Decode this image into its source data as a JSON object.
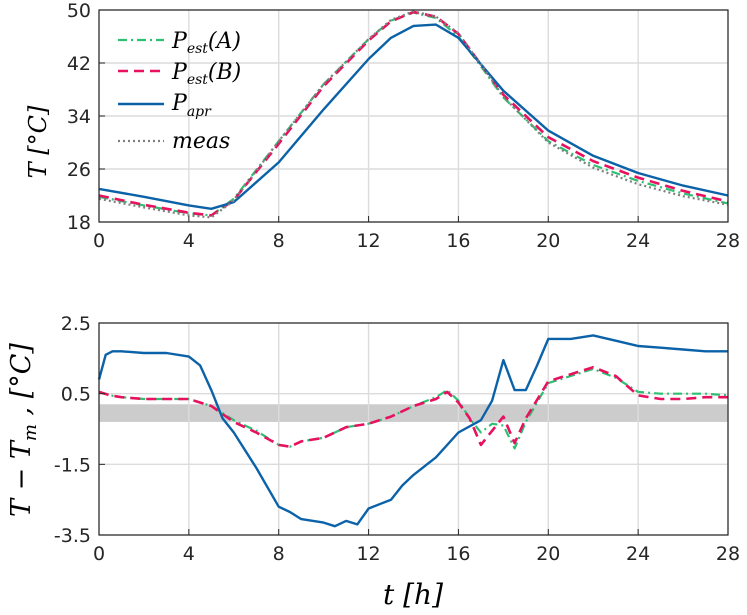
{
  "colors": {
    "pest_a": "#2fbf71",
    "pest_b": "#e8115f",
    "papr": "#0b62a8",
    "meas": "#7f7f7f",
    "band": "#cccccc",
    "grid": "#dcdcdc",
    "axis": "#262626"
  },
  "chart_data": [
    {
      "type": "line",
      "ylabel": "T [°C]",
      "xlim": [
        0,
        28
      ],
      "ylim": [
        18,
        50
      ],
      "xticks": [
        "0",
        "4",
        "8",
        "12",
        "16",
        "20",
        "24",
        "28"
      ],
      "yticks": [
        "18",
        "26",
        "34",
        "42",
        "50"
      ],
      "grid": true,
      "legend_position": "top-left",
      "series": [
        {
          "name": "P_est(A)",
          "style": "dash-dot",
          "x": [
            0,
            2,
            4,
            5,
            6,
            8,
            10,
            12,
            13,
            14,
            15,
            16,
            17,
            18,
            20,
            22,
            24,
            26,
            28
          ],
          "y": [
            21.8,
            20.5,
            19.3,
            19.0,
            21.5,
            30.2,
            38.8,
            45.6,
            48.4,
            49.6,
            48.8,
            46.0,
            41.5,
            36.8,
            30.2,
            26.6,
            24.2,
            22.3,
            20.8
          ]
        },
        {
          "name": "P_est(B)",
          "style": "dashed",
          "x": [
            0,
            2,
            4,
            5,
            6,
            8,
            10,
            12,
            13,
            14,
            15,
            16,
            17,
            18,
            20,
            22,
            24,
            26,
            28
          ],
          "y": [
            22.0,
            20.6,
            19.4,
            19.0,
            21.3,
            29.8,
            38.5,
            45.4,
            48.3,
            49.7,
            49.0,
            46.4,
            41.8,
            37.2,
            30.8,
            27.2,
            24.7,
            22.7,
            21.1
          ]
        },
        {
          "name": "P_apr",
          "style": "solid",
          "x": [
            0,
            2,
            4,
            5,
            6,
            8,
            10,
            12,
            13,
            14,
            15,
            16,
            17,
            18,
            20,
            22,
            24,
            26,
            28
          ],
          "y": [
            23.0,
            21.8,
            20.5,
            20.0,
            21.0,
            27.0,
            35.0,
            42.6,
            45.8,
            47.6,
            47.8,
            45.8,
            41.8,
            37.8,
            31.8,
            28.0,
            25.4,
            23.5,
            22.0
          ]
        },
        {
          "name": "meas",
          "style": "dotted",
          "x": [
            0,
            2,
            4,
            5,
            6,
            8,
            10,
            12,
            13,
            14,
            15,
            16,
            17,
            18,
            20,
            22,
            24,
            26,
            28
          ],
          "y": [
            21.5,
            20.2,
            19.0,
            18.7,
            21.2,
            30.2,
            38.8,
            45.6,
            48.5,
            49.8,
            49.0,
            46.5,
            41.8,
            36.9,
            30.0,
            26.2,
            23.7,
            21.9,
            20.6
          ]
        }
      ]
    },
    {
      "type": "line",
      "ylabel": "T − Tm , [°C]",
      "xlabel": "t [h]",
      "xlim": [
        0,
        28
      ],
      "ylim": [
        -3.5,
        2.5
      ],
      "xticks": [
        "0",
        "4",
        "8",
        "12",
        "16",
        "20",
        "24",
        "28"
      ],
      "yticks": [
        "-3.5",
        "-1.5",
        "0.5",
        "2.5"
      ],
      "grid": true,
      "band": [
        -0.3,
        0.2
      ],
      "series": [
        {
          "name": "P_est(A)",
          "style": "dash-dot",
          "x": [
            0,
            0.5,
            1,
            2,
            3,
            4,
            5,
            6,
            7,
            8,
            8.5,
            9,
            10,
            11,
            12,
            13,
            14,
            15,
            15.5,
            16,
            16.5,
            17,
            17.5,
            18,
            18.5,
            19,
            20,
            21,
            22,
            23,
            24,
            25,
            26,
            27,
            28
          ],
          "y": [
            0.55,
            0.45,
            0.4,
            0.35,
            0.35,
            0.35,
            0.15,
            -0.25,
            -0.55,
            -0.95,
            -1.0,
            -0.85,
            -0.75,
            -0.45,
            -0.35,
            -0.15,
            0.15,
            0.4,
            0.6,
            0.3,
            -0.2,
            -0.6,
            -0.35,
            -0.4,
            -1.05,
            -0.3,
            0.8,
            1.0,
            1.2,
            0.95,
            0.55,
            0.5,
            0.5,
            0.5,
            0.45
          ]
        },
        {
          "name": "P_est(B)",
          "style": "dashed",
          "x": [
            0,
            0.5,
            1,
            2,
            3,
            4,
            5,
            6,
            7,
            8,
            8.5,
            9,
            10,
            11,
            12,
            13,
            14,
            15,
            15.5,
            16,
            16.5,
            17,
            17.5,
            18,
            18.5,
            19,
            20,
            21,
            22,
            23,
            24,
            25,
            26,
            27,
            28
          ],
          "y": [
            0.55,
            0.45,
            0.4,
            0.35,
            0.35,
            0.35,
            0.15,
            -0.3,
            -0.6,
            -0.95,
            -1.0,
            -0.85,
            -0.75,
            -0.45,
            -0.35,
            -0.15,
            0.15,
            0.35,
            0.55,
            0.25,
            -0.2,
            -0.95,
            -0.55,
            -0.15,
            -0.9,
            -0.2,
            0.85,
            1.05,
            1.25,
            1.0,
            0.45,
            0.35,
            0.35,
            0.4,
            0.4
          ]
        },
        {
          "name": "P_apr",
          "style": "solid",
          "x": [
            0,
            0.3,
            0.6,
            1,
            2,
            3,
            4,
            4.5,
            5,
            5.5,
            6,
            7,
            8,
            8.5,
            9,
            10,
            10.5,
            11,
            11.5,
            12,
            13,
            13.5,
            14,
            15,
            16,
            17,
            17.5,
            18,
            18.5,
            19,
            19.5,
            20,
            21,
            22,
            23,
            24,
            25,
            26,
            27,
            28
          ],
          "y": [
            0.9,
            1.6,
            1.7,
            1.7,
            1.65,
            1.65,
            1.55,
            1.3,
            0.6,
            -0.2,
            -0.6,
            -1.6,
            -2.7,
            -2.85,
            -3.05,
            -3.15,
            -3.25,
            -3.1,
            -3.2,
            -2.75,
            -2.5,
            -2.1,
            -1.8,
            -1.3,
            -0.6,
            -0.25,
            0.3,
            1.45,
            0.6,
            0.6,
            1.3,
            2.05,
            2.05,
            2.15,
            2.0,
            1.85,
            1.8,
            1.75,
            1.7,
            1.7
          ]
        }
      ]
    }
  ]
}
